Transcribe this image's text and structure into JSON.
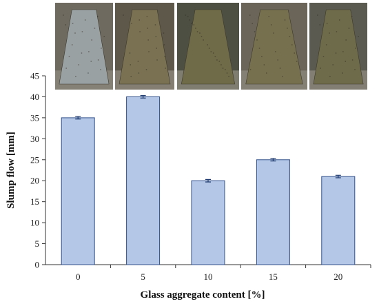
{
  "chart_data": {
    "type": "bar",
    "title": "",
    "xlabel": "Glass aggregate content [%]",
    "ylabel": "Slump flow [mm]",
    "categories": [
      "0",
      "5",
      "10",
      "15",
      "20"
    ],
    "values": [
      35,
      40,
      20,
      25,
      21
    ],
    "error": [
      0.3,
      0.3,
      0.3,
      0.3,
      0.3
    ],
    "ylim": [
      0,
      45
    ],
    "yticks": [
      0,
      5,
      10,
      15,
      20,
      25,
      30,
      35,
      40,
      45
    ],
    "grid": false,
    "legend": "none",
    "bar_color": "#b4c7e7",
    "bar_edge_color": "#2f4f8a",
    "error_color": "#1f3a6e"
  },
  "photos": [
    {
      "name": "photo-glass-0",
      "body_color": "#9aa1a3",
      "bg_color": "#6f6a60"
    },
    {
      "name": "photo-glass-5",
      "body_color": "#7a7152",
      "bg_color": "#5e584a"
    },
    {
      "name": "photo-glass-10",
      "body_color": "#6f6a47",
      "bg_color": "#4e4f43"
    },
    {
      "name": "photo-glass-15",
      "body_color": "#77704e",
      "bg_color": "#6a6558"
    },
    {
      "name": "photo-glass-20",
      "body_color": "#6e6b4a",
      "bg_color": "#5a5a50"
    }
  ]
}
